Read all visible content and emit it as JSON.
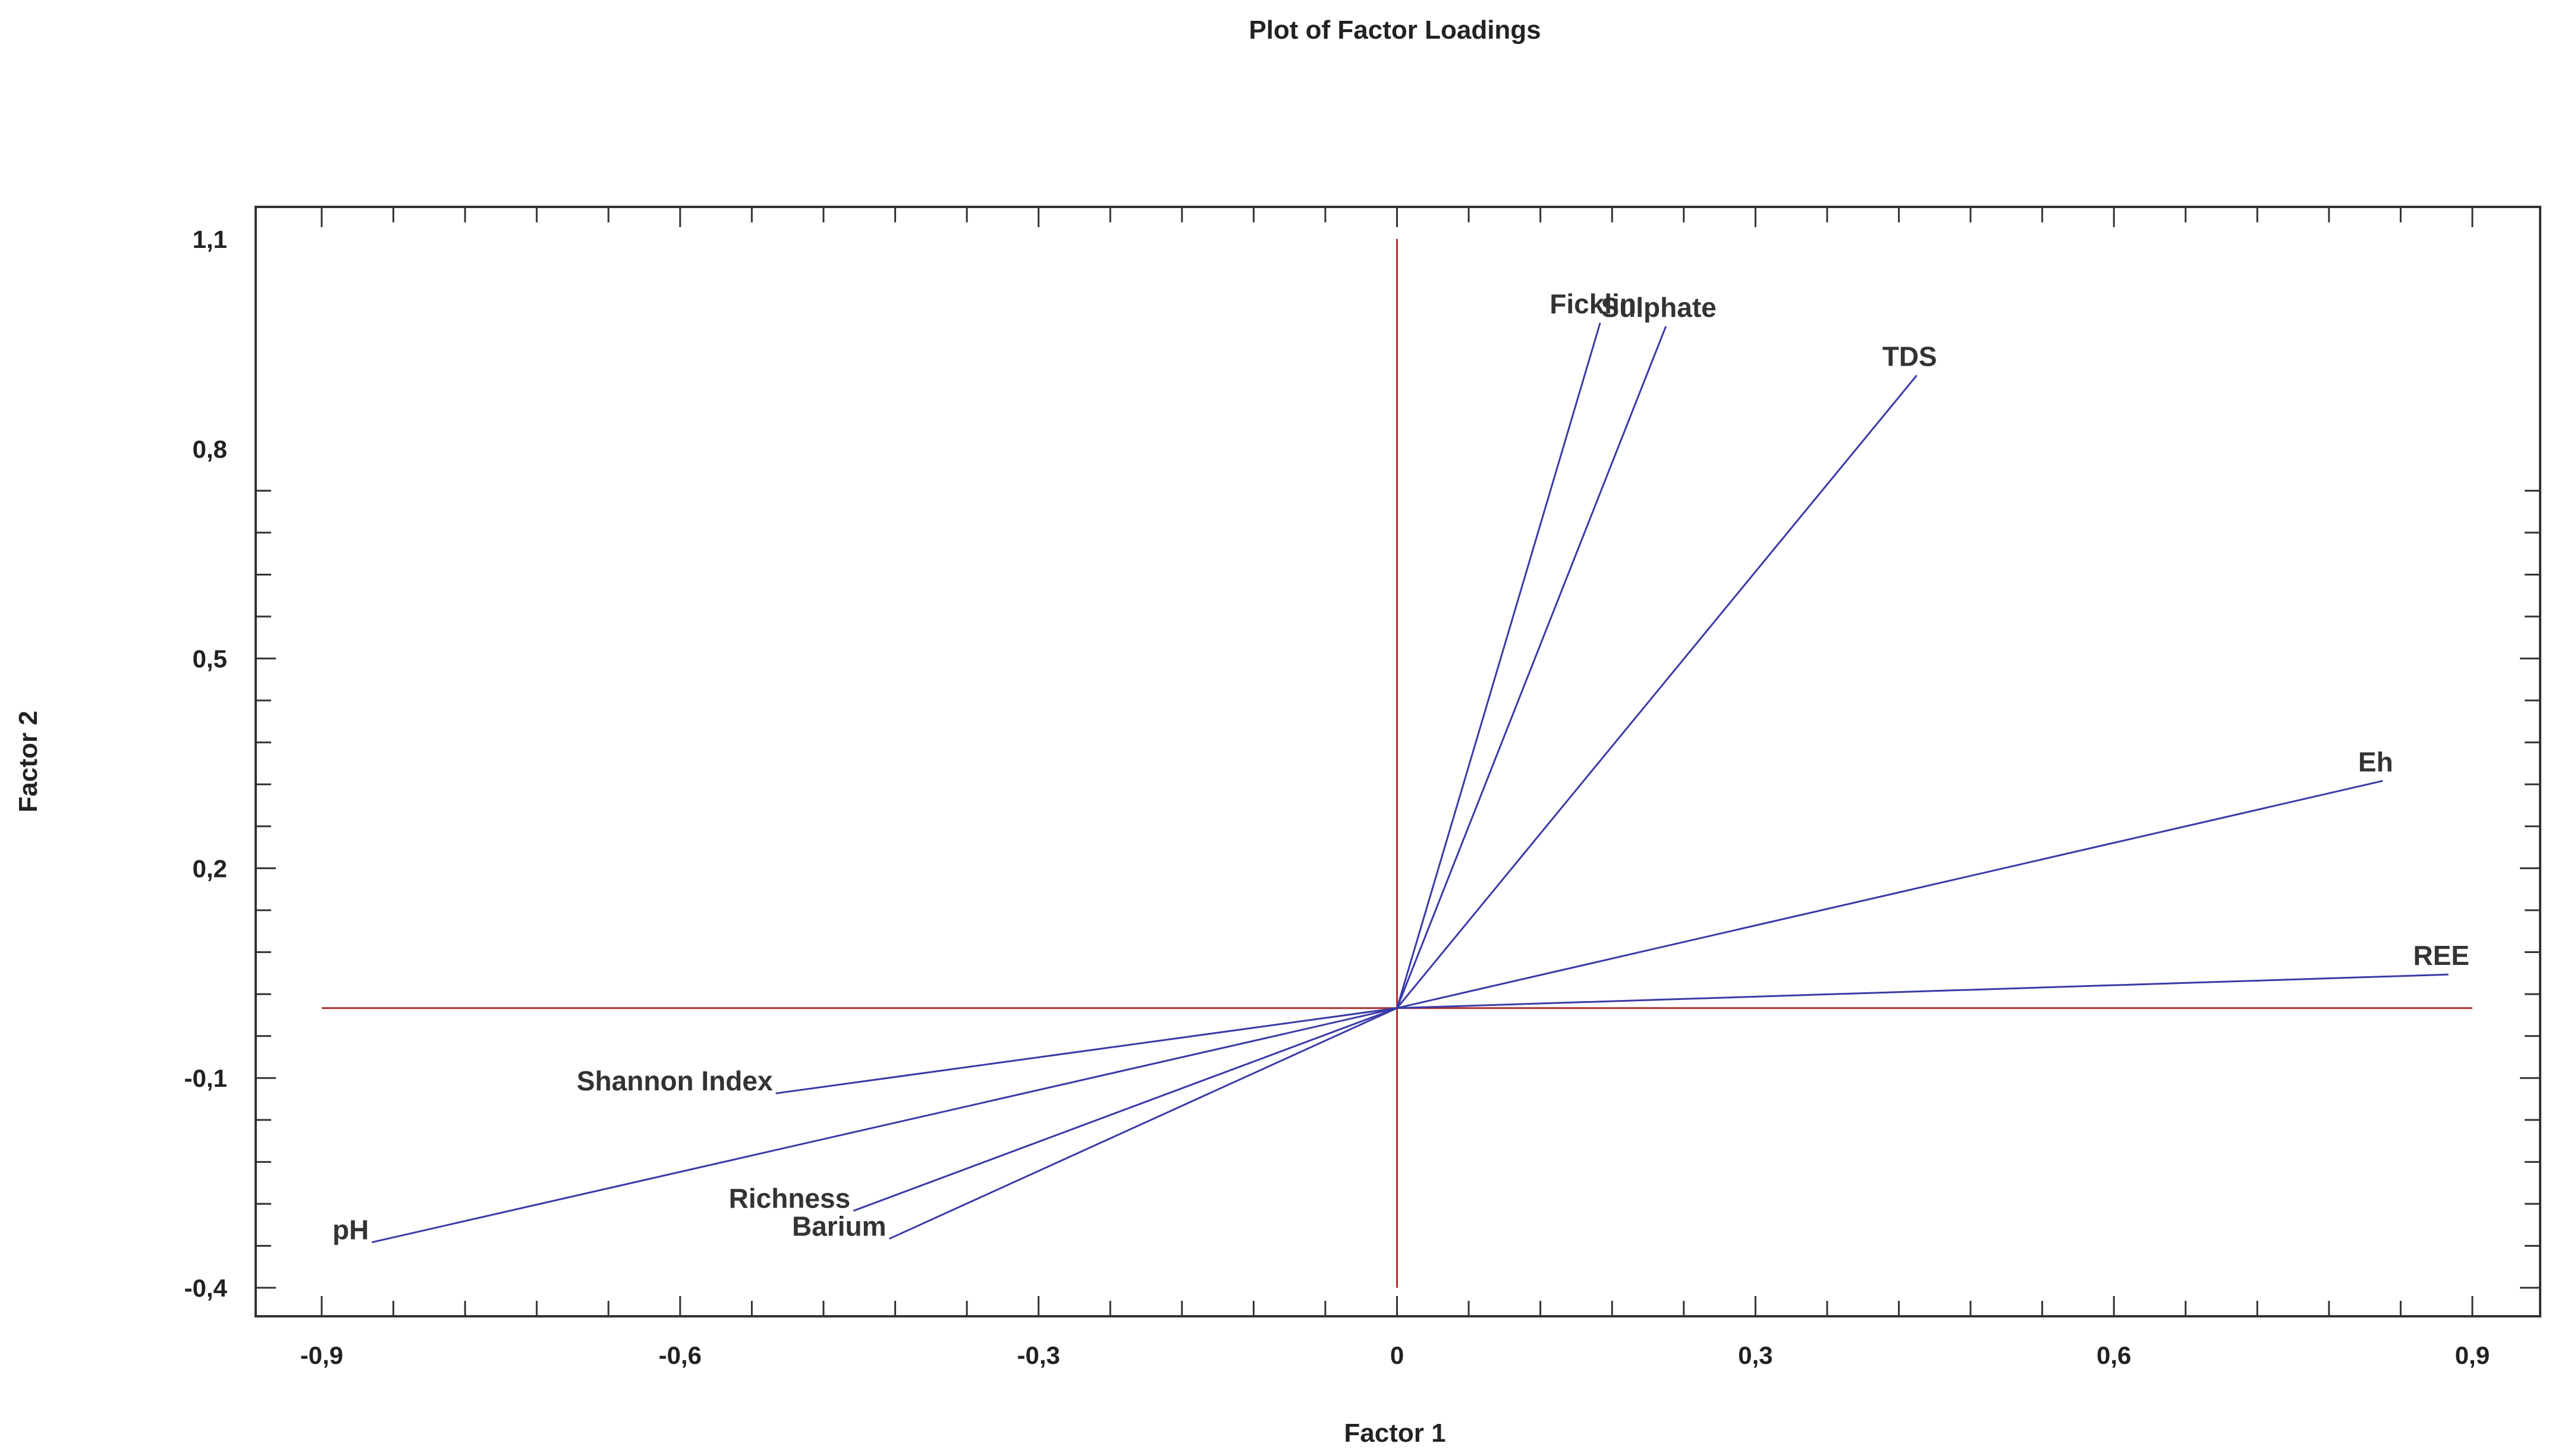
{
  "chart_data": {
    "type": "biplot",
    "title": "Plot of Factor Loadings",
    "xlabel": "Factor 1",
    "ylabel": "Factor 2",
    "xlim": [
      -0.95,
      0.95
    ],
    "ylim": [
      -0.44,
      1.15
    ],
    "xticks": [
      -0.9,
      -0.6,
      -0.3,
      0,
      0.3,
      0.6,
      0.9
    ],
    "xtick_labels": [
      "-0,9",
      "-0,6",
      "-0,3",
      "0",
      "0,3",
      "0,6",
      "0,9"
    ],
    "yticks": [
      -0.4,
      -0.1,
      0.2,
      0.5,
      0.8,
      1.1
    ],
    "ytick_labels": [
      "-0,4",
      "-0,1",
      "0,2",
      "0,5",
      "0,8",
      "1,1"
    ],
    "colors": {
      "vectors": "#3a3aa8",
      "reference_lines": "#b03030",
      "frame": "#333333"
    },
    "vectors": [
      {
        "name": "Ficklin",
        "x": 0.17,
        "y": 0.98
      },
      {
        "name": "Sulphate",
        "x": 0.225,
        "y": 0.975
      },
      {
        "name": "TDS",
        "x": 0.435,
        "y": 0.905
      },
      {
        "name": "Eh",
        "x": 0.825,
        "y": 0.325
      },
      {
        "name": "REE",
        "x": 0.88,
        "y": 0.048
      },
      {
        "name": "Shannon Index",
        "x": -0.52,
        "y": -0.122
      },
      {
        "name": "pH",
        "x": -0.858,
        "y": -0.335
      },
      {
        "name": "Richness",
        "x": -0.455,
        "y": -0.29
      },
      {
        "name": "Barium",
        "x": -0.425,
        "y": -0.33
      }
    ]
  }
}
